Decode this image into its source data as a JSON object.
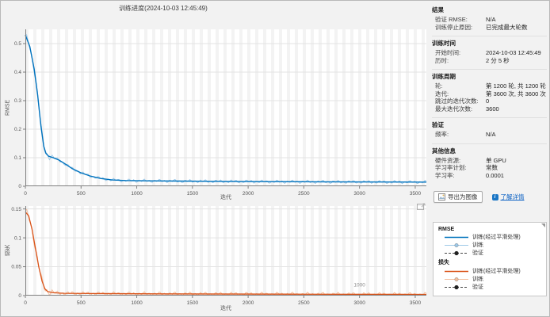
{
  "window": {
    "title": "训练进度(2024-10-03 12:45:49)"
  },
  "info_panel": {
    "sections": [
      {
        "header": "结果",
        "rows": [
          {
            "label": "验证 RMSE:",
            "value": "N/A"
          },
          {
            "label": "训练停止原因:",
            "value": "已完成最大轮数"
          }
        ]
      },
      {
        "header": "训练时间",
        "rows": [
          {
            "label": "开始时间:",
            "value": "2024-10-03 12:45:49"
          },
          {
            "label": "历时:",
            "value": "2 分 5 秒"
          }
        ]
      },
      {
        "header": "训练周期",
        "rows": [
          {
            "label": "轮:",
            "value": "第 1200 轮, 共 1200 轮"
          },
          {
            "label": "迭代:",
            "value": "第 3600 次, 共 3600 次"
          },
          {
            "label": "跳过的迭代次数:",
            "value": "0"
          },
          {
            "label": "最大迭代次数:",
            "value": "3600"
          }
        ]
      },
      {
        "header": "验证",
        "rows": [
          {
            "label": "频率:",
            "value": "N/A"
          }
        ]
      },
      {
        "header": "其他信息",
        "rows": [
          {
            "label": "硬件资源:",
            "value": "单 GPU"
          },
          {
            "label": "学习率计划:",
            "value": "常数"
          },
          {
            "label": "学习率:",
            "value": "0.0001"
          }
        ]
      }
    ],
    "export_button": "导出为图像",
    "learn_more": "了解详情"
  },
  "legend": {
    "groups": [
      {
        "title": "RMSE",
        "entries": [
          {
            "label": "训练(经过平滑处理)",
            "style": "solid",
            "color": "#0072bd"
          },
          {
            "label": "训练",
            "style": "marker",
            "color": "#9ec9e8"
          },
          {
            "label": "验证",
            "style": "dashed-dot",
            "color": "#333333"
          }
        ]
      },
      {
        "title": "损失",
        "entries": [
          {
            "label": "训练(经过平滑处理)",
            "style": "solid",
            "color": "#d95319"
          },
          {
            "label": "训练",
            "style": "marker",
            "color": "#f3c0a0"
          },
          {
            "label": "验证",
            "style": "dashed-dot",
            "color": "#333333"
          }
        ]
      }
    ]
  },
  "chart_data": [
    {
      "type": "line",
      "title": "RMSE",
      "xlabel": "迭代",
      "ylabel": "RMSE",
      "xlim": [
        0,
        3600
      ],
      "ylim": [
        0,
        0.55
      ],
      "xticks": [
        0,
        500,
        1000,
        1500,
        2000,
        2500,
        3000,
        3500
      ],
      "yticks": [
        0,
        0.1,
        0.2,
        0.3,
        0.4,
        0.5
      ],
      "grid": "horizontal",
      "epoch_bands": true,
      "legend_position": "external-right",
      "series": [
        {
          "name": "训练(经过平滑处理)",
          "color": "#0072bd",
          "width": 1.4,
          "points": [
            [
              0,
              0.53
            ],
            [
              40,
              0.49
            ],
            [
              80,
              0.41
            ],
            [
              110,
              0.32
            ],
            [
              140,
              0.21
            ],
            [
              165,
              0.14
            ],
            [
              185,
              0.115
            ],
            [
              210,
              0.105
            ],
            [
              250,
              0.1
            ],
            [
              300,
              0.092
            ],
            [
              350,
              0.08
            ],
            [
              420,
              0.062
            ],
            [
              500,
              0.047
            ],
            [
              580,
              0.036
            ],
            [
              680,
              0.027
            ],
            [
              780,
              0.022
            ],
            [
              900,
              0.02
            ],
            [
              1100,
              0.019
            ],
            [
              1400,
              0.018
            ],
            [
              1800,
              0.017
            ],
            [
              2200,
              0.016
            ],
            [
              2600,
              0.0155
            ],
            [
              3000,
              0.015
            ],
            [
              3600,
              0.0145
            ]
          ]
        },
        {
          "name": "训练",
          "color": "#9ec9e8",
          "width": 1,
          "derived_noise": 0.006
        }
      ],
      "annotations": []
    },
    {
      "type": "line",
      "title": "损失",
      "xlabel": "迭代",
      "ylabel": "损失",
      "xlim": [
        0,
        3600
      ],
      "ylim": [
        0,
        0.155
      ],
      "xticks": [
        0,
        500,
        1000,
        1500,
        2000,
        2500,
        3000,
        3500
      ],
      "yticks": [
        0,
        0.05,
        0.1,
        0.15
      ],
      "grid": "horizontal",
      "epoch_bands": true,
      "legend_position": "external-right",
      "series": [
        {
          "name": "训练(经过平滑处理)",
          "color": "#d95319",
          "width": 1.3,
          "points": [
            [
              0,
              0.145
            ],
            [
              30,
              0.138
            ],
            [
              60,
              0.115
            ],
            [
              90,
              0.082
            ],
            [
              120,
              0.05
            ],
            [
              150,
              0.025
            ],
            [
              175,
              0.012
            ],
            [
              200,
              0.007
            ],
            [
              250,
              0.005
            ],
            [
              350,
              0.004
            ],
            [
              600,
              0.0035
            ],
            [
              1200,
              0.003
            ],
            [
              2400,
              0.0025
            ],
            [
              3600,
              0.002
            ]
          ]
        },
        {
          "name": "训练",
          "color": "#f3c0a0",
          "width": 1,
          "derived_noise": 0.0035
        }
      ],
      "annotations": [
        {
          "text": "1000",
          "x": 3000,
          "y": 0.016
        }
      ]
    }
  ]
}
